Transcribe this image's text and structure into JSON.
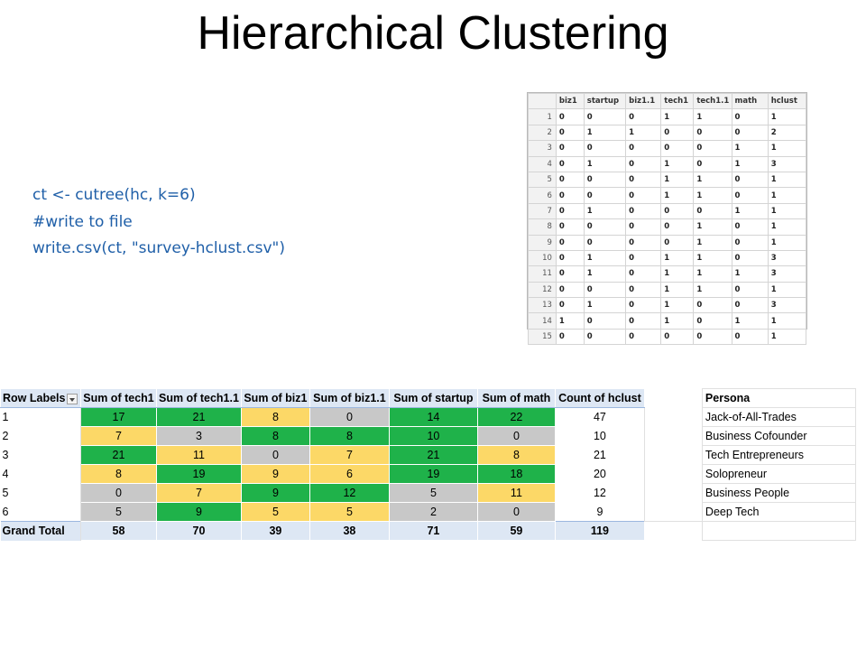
{
  "title": "Hierarchical Clustering",
  "code_lines": [
    "ct <- cutree(hc, k=6)",
    "#write to file",
    "write.csv(ct, \"survey-hclust.csv\")"
  ],
  "dataframe": {
    "headers": [
      "",
      "biz1",
      "startup",
      "biz1.1",
      "tech1",
      "tech1.1",
      "math",
      "hclust"
    ],
    "rows": [
      [
        "1",
        "0",
        "0",
        "0",
        "1",
        "1",
        "0",
        "1"
      ],
      [
        "2",
        "0",
        "1",
        "1",
        "0",
        "0",
        "0",
        "2"
      ],
      [
        "3",
        "0",
        "0",
        "0",
        "0",
        "0",
        "1",
        "1"
      ],
      [
        "4",
        "0",
        "1",
        "0",
        "1",
        "0",
        "1",
        "3"
      ],
      [
        "5",
        "0",
        "0",
        "0",
        "1",
        "1",
        "0",
        "1"
      ],
      [
        "6",
        "0",
        "0",
        "0",
        "1",
        "1",
        "0",
        "1"
      ],
      [
        "7",
        "0",
        "1",
        "0",
        "0",
        "0",
        "1",
        "1"
      ],
      [
        "8",
        "0",
        "0",
        "0",
        "0",
        "1",
        "0",
        "1"
      ],
      [
        "9",
        "0",
        "0",
        "0",
        "0",
        "1",
        "0",
        "1"
      ],
      [
        "10",
        "0",
        "1",
        "0",
        "1",
        "1",
        "0",
        "3"
      ],
      [
        "11",
        "0",
        "1",
        "0",
        "1",
        "1",
        "1",
        "3"
      ],
      [
        "12",
        "0",
        "0",
        "0",
        "1",
        "1",
        "0",
        "1"
      ],
      [
        "13",
        "0",
        "1",
        "0",
        "1",
        "0",
        "0",
        "3"
      ],
      [
        "14",
        "1",
        "0",
        "0",
        "1",
        "0",
        "1",
        "1"
      ],
      [
        "15",
        "0",
        "0",
        "0",
        "0",
        "0",
        "0",
        "1"
      ]
    ]
  },
  "pivot": {
    "row_labels_header": "Row Labels",
    "headers": [
      "Sum of tech1",
      "Sum of tech1.1",
      "Sum of biz1",
      "Sum of biz1.1",
      "Sum of startup",
      "Sum of math",
      "Count of hclust"
    ],
    "persona_header": "Persona",
    "colors": {
      "green": "#1fb24a",
      "yellow": "#fcd867",
      "gray": "#c8c8c8",
      "header": "#dde7f4"
    },
    "rows": [
      {
        "label": "1",
        "values": [
          "17",
          "21",
          "8",
          "0",
          "14",
          "22"
        ],
        "colors": [
          "green",
          "green",
          "yellow",
          "gray",
          "green",
          "green"
        ],
        "count": "47",
        "persona": "Jack-of-All-Trades"
      },
      {
        "label": "2",
        "values": [
          "7",
          "3",
          "8",
          "8",
          "10",
          "0"
        ],
        "colors": [
          "yellow",
          "gray",
          "green",
          "green",
          "green",
          "gray"
        ],
        "count": "10",
        "persona": "Business Cofounder"
      },
      {
        "label": "3",
        "values": [
          "21",
          "11",
          "0",
          "7",
          "21",
          "8"
        ],
        "colors": [
          "green",
          "yellow",
          "gray",
          "yellow",
          "green",
          "yellow"
        ],
        "count": "21",
        "persona": "Tech Entrepreneurs"
      },
      {
        "label": "4",
        "values": [
          "8",
          "19",
          "9",
          "6",
          "19",
          "18"
        ],
        "colors": [
          "yellow",
          "green",
          "yellow",
          "yellow",
          "green",
          "green"
        ],
        "count": "20",
        "persona": "Solopreneur"
      },
      {
        "label": "5",
        "values": [
          "0",
          "7",
          "9",
          "12",
          "5",
          "11"
        ],
        "colors": [
          "gray",
          "yellow",
          "green",
          "green",
          "gray",
          "yellow"
        ],
        "count": "12",
        "persona": "Business People"
      },
      {
        "label": "6",
        "values": [
          "5",
          "9",
          "5",
          "5",
          "2",
          "0"
        ],
        "colors": [
          "gray",
          "green",
          "yellow",
          "yellow",
          "gray",
          "gray"
        ],
        "count": "9",
        "persona": "Deep Tech"
      }
    ],
    "grand_total": {
      "label": "Grand Total",
      "values": [
        "58",
        "70",
        "39",
        "38",
        "71",
        "59"
      ],
      "count": "119"
    }
  }
}
